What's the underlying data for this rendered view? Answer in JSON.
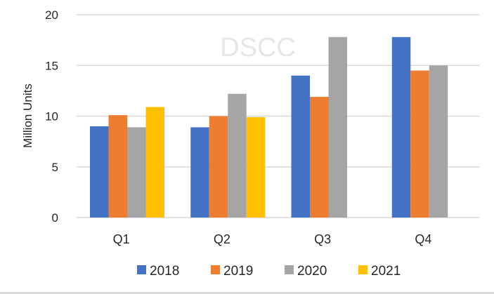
{
  "chart_data": {
    "type": "bar",
    "title": "",
    "watermark": "DSCC",
    "xlabel": "",
    "ylabel": "Million Units",
    "ylim": [
      0,
      20
    ],
    "yticks": [
      0,
      5,
      10,
      15,
      20
    ],
    "grid": true,
    "legend_position": "bottom",
    "categories": [
      "Q1",
      "Q2",
      "Q3",
      "Q4"
    ],
    "series": [
      {
        "name": "2018",
        "color": "#4472c4",
        "values": [
          9.0,
          8.9,
          14.0,
          17.8
        ]
      },
      {
        "name": "2019",
        "color": "#ed7d31",
        "values": [
          10.1,
          10.0,
          11.9,
          14.5
        ]
      },
      {
        "name": "2020",
        "color": "#a5a5a5",
        "values": [
          8.9,
          12.2,
          17.8,
          15.0
        ]
      },
      {
        "name": "2021",
        "color": "#ffc000",
        "values": [
          10.9,
          9.9,
          null,
          null
        ]
      }
    ]
  }
}
